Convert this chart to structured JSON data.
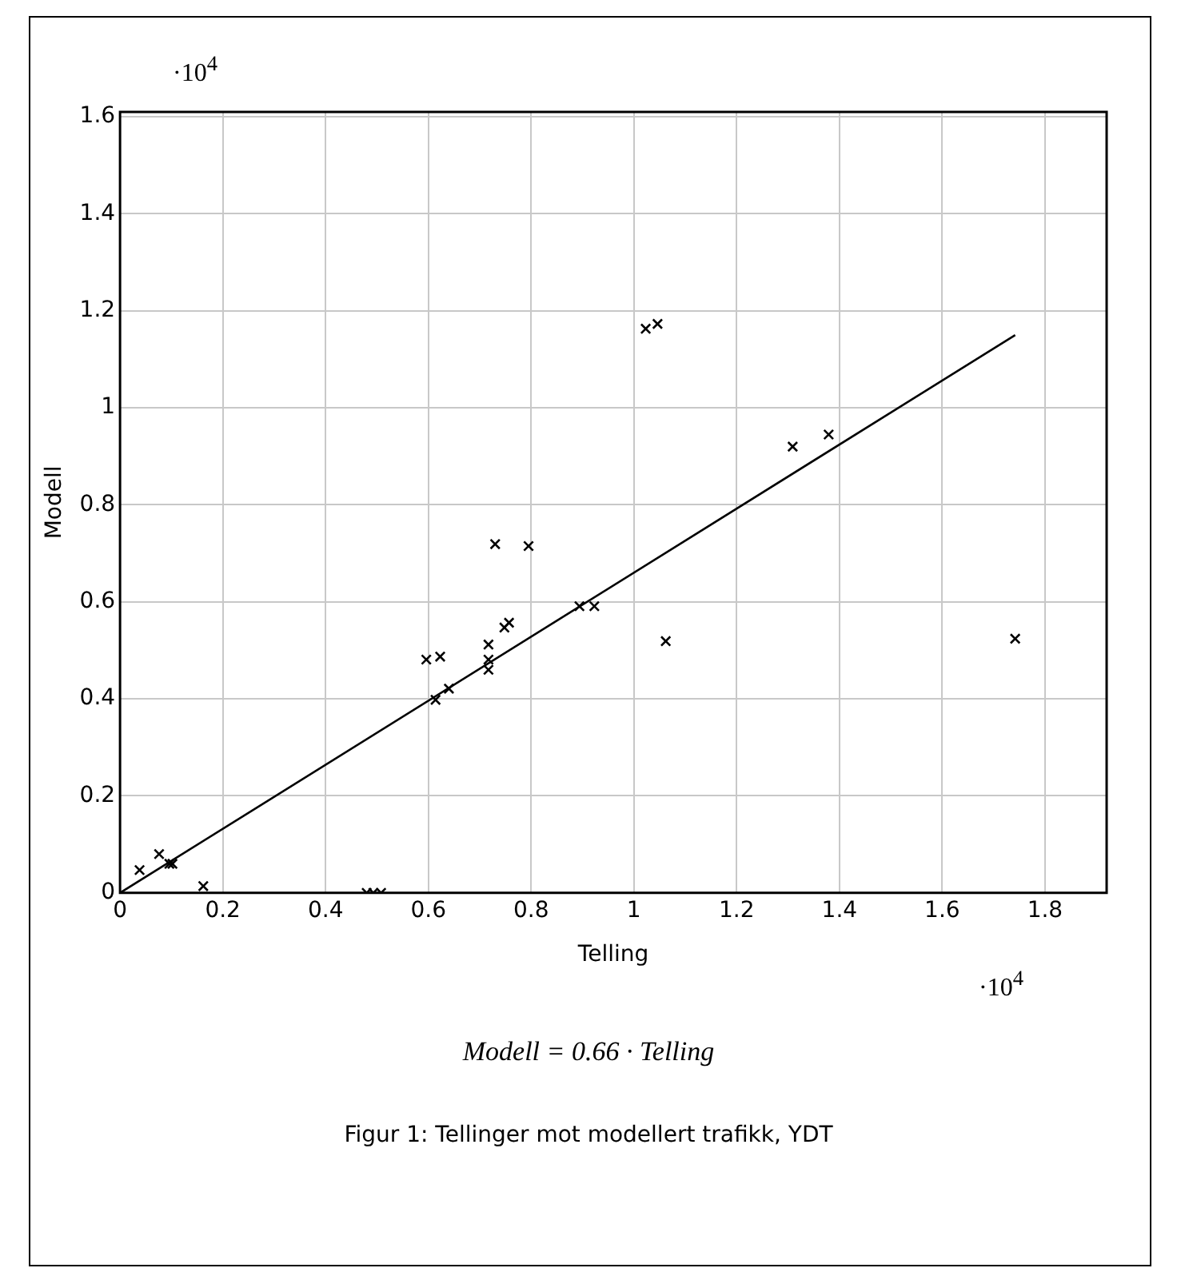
{
  "chart_data": {
    "type": "scatter",
    "title": "Figur 1: Tellinger mot modellert trafikk, YDT",
    "xlabel": "Telling",
    "ylabel": "Modell",
    "annotations": [
      "·10$^{4}$",
      "·10$^{4}$",
      "Modell = 0.66 · Telling"
    ],
    "marker": "cross",
    "grid": true,
    "legend": false,
    "xlim": [
      0,
      1.92
    ],
    "ylim": [
      0,
      1.61
    ],
    "xticks": [
      0,
      0.2,
      0.4,
      0.6,
      0.8,
      1,
      1.2,
      1.4,
      1.6,
      1.8
    ],
    "yticks": [
      0,
      0.2,
      0.4,
      0.6,
      0.8,
      1,
      1.2,
      1.4,
      1.6
    ],
    "series": [
      {
        "color": "#000000",
        "x": [
          0.038,
          0.076,
          0.096,
          0.102,
          0.162,
          0.48,
          0.493,
          0.508,
          0.596,
          0.614,
          0.623,
          0.64,
          0.717,
          0.717,
          0.717,
          0.73,
          0.748,
          0.757,
          0.795,
          0.894,
          0.923,
          1.023,
          1.046,
          1.062,
          1.309,
          1.379,
          1.742
        ],
        "values": [
          0.047,
          0.08,
          0.06,
          0.06,
          0.014,
          0,
          0,
          0,
          0.481,
          0.398,
          0.487,
          0.421,
          0.512,
          0.481,
          0.46,
          0.719,
          0.547,
          0.557,
          0.715,
          0.591,
          0.591,
          1.163,
          1.173,
          0.519,
          0.92,
          0.945,
          0.524
        ]
      },
      {
        "type": "line",
        "color": "#000000",
        "marker": "none",
        "x": [
          0,
          1.742
        ],
        "values": [
          0,
          1.15
        ]
      }
    ]
  }
}
